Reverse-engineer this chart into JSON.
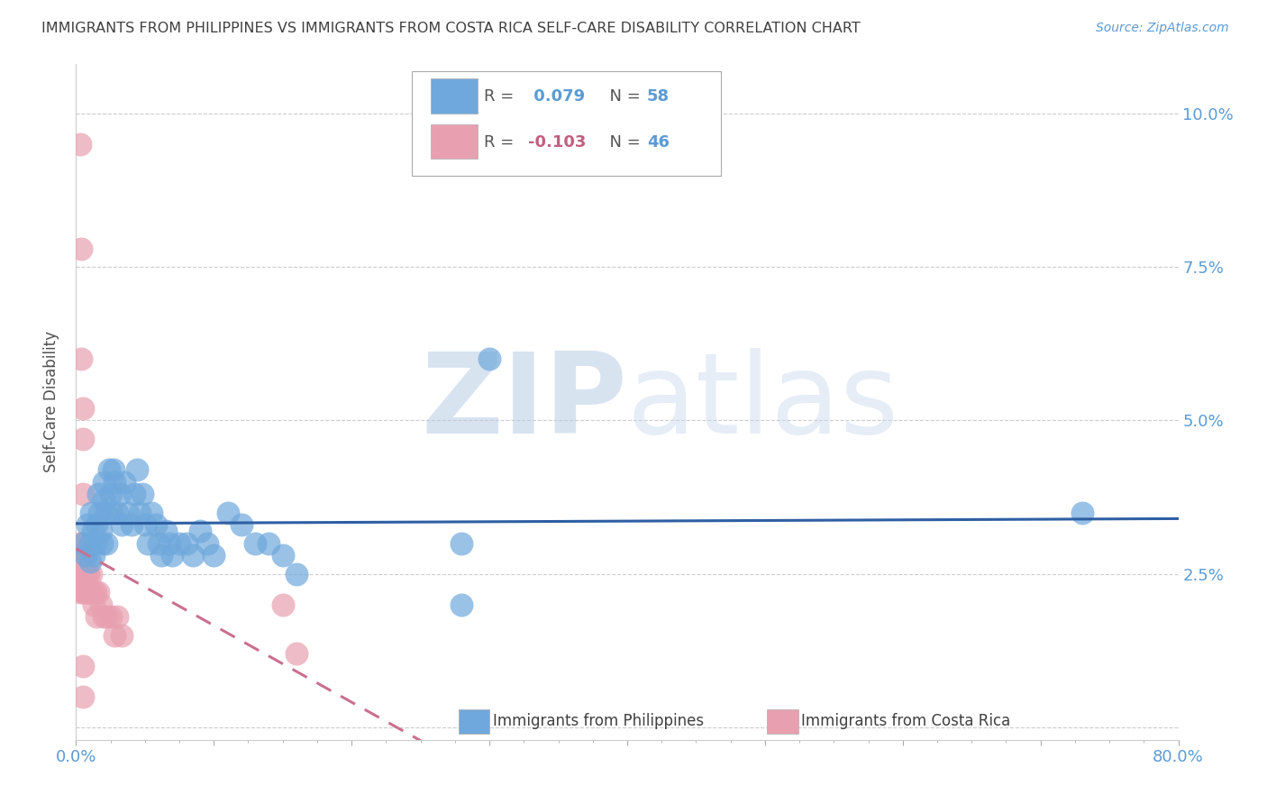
{
  "title": "IMMIGRANTS FROM PHILIPPINES VS IMMIGRANTS FROM COSTA RICA SELF-CARE DISABILITY CORRELATION CHART",
  "source": "Source: ZipAtlas.com",
  "ylabel": "Self-Care Disability",
  "xlim": [
    0.0,
    0.8
  ],
  "ylim": [
    -0.002,
    0.108
  ],
  "yticks": [
    0.0,
    0.025,
    0.05,
    0.075,
    0.1
  ],
  "ytick_labels": [
    "",
    "2.5%",
    "5.0%",
    "7.5%",
    "10.0%"
  ],
  "xticks": [
    0.0,
    0.1,
    0.2,
    0.3,
    0.4,
    0.5,
    0.6,
    0.7,
    0.8
  ],
  "xtick_labels": [
    "0.0%",
    "",
    "",
    "",
    "",
    "",
    "",
    "",
    "80.0%"
  ],
  "philippines_color": "#6fa8dc",
  "costarica_color": "#e8a0b0",
  "philippines_line_color": "#2e5fa3",
  "costarica_line_color": "#c97090",
  "philippines_R": 0.079,
  "philippines_N": 58,
  "costarica_R": -0.103,
  "costarica_N": 46,
  "philippines_x": [
    0.005,
    0.007,
    0.008,
    0.01,
    0.01,
    0.011,
    0.012,
    0.013,
    0.014,
    0.015,
    0.016,
    0.017,
    0.018,
    0.019,
    0.02,
    0.02,
    0.022,
    0.022,
    0.024,
    0.025,
    0.026,
    0.027,
    0.028,
    0.03,
    0.032,
    0.033,
    0.035,
    0.038,
    0.04,
    0.042,
    0.044,
    0.046,
    0.048,
    0.05,
    0.052,
    0.055,
    0.058,
    0.06,
    0.062,
    0.065,
    0.068,
    0.07,
    0.075,
    0.08,
    0.085,
    0.09,
    0.095,
    0.1,
    0.11,
    0.12,
    0.13,
    0.14,
    0.15,
    0.16,
    0.28,
    0.3,
    0.73,
    0.28
  ],
  "philippines_y": [
    0.03,
    0.028,
    0.033,
    0.03,
    0.027,
    0.035,
    0.032,
    0.028,
    0.03,
    0.033,
    0.038,
    0.035,
    0.032,
    0.03,
    0.037,
    0.04,
    0.035,
    0.03,
    0.042,
    0.038,
    0.035,
    0.042,
    0.04,
    0.035,
    0.038,
    0.033,
    0.04,
    0.035,
    0.033,
    0.038,
    0.042,
    0.035,
    0.038,
    0.033,
    0.03,
    0.035,
    0.033,
    0.03,
    0.028,
    0.032,
    0.03,
    0.028,
    0.03,
    0.03,
    0.028,
    0.032,
    0.03,
    0.028,
    0.035,
    0.033,
    0.03,
    0.03,
    0.028,
    0.025,
    0.03,
    0.06,
    0.035,
    0.02
  ],
  "costarica_x": [
    0.002,
    0.002,
    0.003,
    0.003,
    0.003,
    0.004,
    0.004,
    0.004,
    0.005,
    0.005,
    0.005,
    0.005,
    0.005,
    0.006,
    0.006,
    0.006,
    0.007,
    0.007,
    0.008,
    0.008,
    0.009,
    0.009,
    0.01,
    0.011,
    0.012,
    0.013,
    0.014,
    0.015,
    0.016,
    0.018,
    0.02,
    0.022,
    0.025,
    0.028,
    0.03,
    0.033,
    0.15,
    0.16,
    0.003,
    0.004,
    0.004,
    0.005,
    0.005,
    0.005,
    0.005,
    0.005
  ],
  "costarica_y": [
    0.028,
    0.025,
    0.03,
    0.028,
    0.022,
    0.03,
    0.027,
    0.025,
    0.028,
    0.025,
    0.022,
    0.028,
    0.025,
    0.027,
    0.022,
    0.025,
    0.025,
    0.022,
    0.025,
    0.022,
    0.025,
    0.022,
    0.022,
    0.025,
    0.022,
    0.02,
    0.022,
    0.018,
    0.022,
    0.02,
    0.018,
    0.018,
    0.018,
    0.015,
    0.018,
    0.015,
    0.02,
    0.012,
    0.095,
    0.078,
    0.06,
    0.052,
    0.047,
    0.038,
    0.01,
    0.005
  ],
  "watermark_zip": "ZIP",
  "watermark_atlas": "atlas",
  "watermark_color": "#ccd8ee",
  "background_color": "#ffffff",
  "grid_color": "#cccccc",
  "axis_label_color": "#5b9bd5",
  "title_color": "#404040",
  "legend_color_philippines": "#5b9bd5",
  "legend_color_costarica": "#c06080",
  "legend_N_color": "#5b9bd5"
}
